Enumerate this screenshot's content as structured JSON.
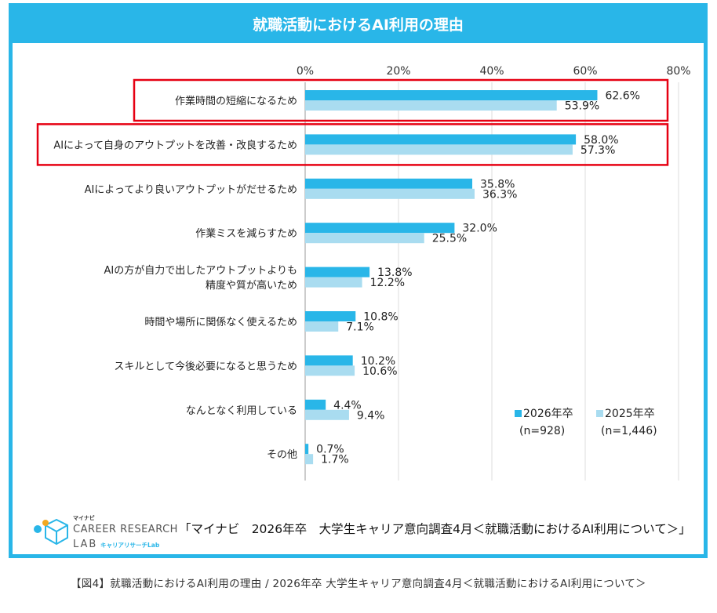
{
  "title": "就職活動におけるAI利用の理由",
  "chart_data": {
    "type": "bar",
    "orientation": "horizontal",
    "xlim": [
      0,
      80
    ],
    "x_ticks": [
      "0%",
      "20%",
      "40%",
      "60%",
      "80%"
    ],
    "x_tick_values": [
      0,
      20,
      40,
      60,
      80
    ],
    "grid": true,
    "legend_position": "bottom-right",
    "categories": [
      "作業時間の短縮になるため",
      "AIによって自身のアウトプットを改善・改良するため",
      "AIによってより良いアウトプットがだせるため",
      "作業ミスを減らすため",
      "AIの方が自力で出したアウトプットよりも\n精度や質が高いため",
      "時間や場所に関係なく使えるため",
      "スキルとして今後必要になると思うため",
      "なんとなく利用している",
      "その他"
    ],
    "highlighted_categories": [
      0,
      1
    ],
    "series": [
      {
        "name": "2026年卒",
        "sample": "(n=928)",
        "color": "#29b6e8",
        "values": [
          62.6,
          58.0,
          35.8,
          32.0,
          13.8,
          10.8,
          10.2,
          4.4,
          0.7
        ],
        "labels": [
          "62.6%",
          "58.0%",
          "35.8%",
          "32.0%",
          "13.8%",
          "10.8%",
          "10.2%",
          "4.4%",
          "0.7%"
        ]
      },
      {
        "name": "2025年卒",
        "sample": "(n=1,446)",
        "color": "#a9dcf0",
        "values": [
          53.9,
          57.3,
          36.3,
          25.5,
          12.2,
          7.1,
          10.6,
          9.4,
          1.7
        ],
        "labels": [
          "53.9%",
          "57.3%",
          "36.3%",
          "25.5%",
          "12.2%",
          "7.1%",
          "10.6%",
          "9.4%",
          "1.7%"
        ]
      }
    ]
  },
  "logo": {
    "brand_small": "マイナビ",
    "line1": "CAREER RESEARCH",
    "line2": "LAB",
    "line2_sub": "キャリアリサーチLab"
  },
  "source": "「マイナビ　2026年卒　大学生キャリア意向調査4月＜就職活動におけるAI利用について＞」",
  "caption": "【図4】就職活動におけるAI利用の理由 / 2026年卒 大学生キャリア意向調査4月＜就職活動におけるAI利用について＞",
  "colors": {
    "accent": "#29b6e8",
    "highlight_box": "#e60012",
    "grid": "#dddddd"
  }
}
